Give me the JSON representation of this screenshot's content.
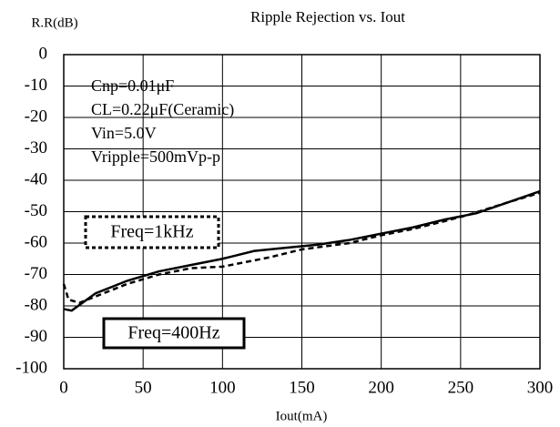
{
  "chart_data": {
    "type": "line",
    "title": "Ripple Rejection vs. Iout",
    "y_label": "R.R(dB)",
    "x_label": "Iout(mA)",
    "annotations": [
      "Cnp=0.01μF",
      "CL=0.22μF(Ceramic)",
      "Vin=5.0V",
      "Vripple=500mVp-p"
    ],
    "xlim": [
      0,
      300
    ],
    "xticks": [
      0,
      50,
      100,
      150,
      200,
      250,
      300
    ],
    "ylim": [
      -100,
      0
    ],
    "yticks": [
      0,
      -10,
      -20,
      -30,
      -40,
      -50,
      -60,
      -70,
      -80,
      -90,
      -100
    ],
    "grid": true,
    "series": [
      {
        "name": "Freq=400Hz",
        "color": "#000000",
        "style": "solid",
        "x": [
          0,
          5,
          20,
          40,
          60,
          80,
          100,
          120,
          140,
          160,
          180,
          200,
          220,
          240,
          260,
          280,
          300
        ],
        "values": [
          -81,
          -81.5,
          -76,
          -72,
          -69,
          -67,
          -65,
          -62.5,
          -61.5,
          -60.5,
          -59,
          -57,
          -55,
          -52.5,
          -50.5,
          -47,
          -43.5
        ]
      },
      {
        "name": "Freq=1kHz",
        "color": "#000000",
        "style": "dashed",
        "x": [
          0,
          3,
          10,
          20,
          40,
          60,
          80,
          100,
          130,
          150,
          180,
          200,
          220,
          240,
          255,
          280,
          300
        ],
        "values": [
          -73,
          -78,
          -79,
          -77,
          -73,
          -70,
          -68,
          -67.5,
          -64.5,
          -62,
          -60,
          -57.5,
          -55.5,
          -53,
          -51,
          -47,
          -44
        ]
      }
    ]
  }
}
